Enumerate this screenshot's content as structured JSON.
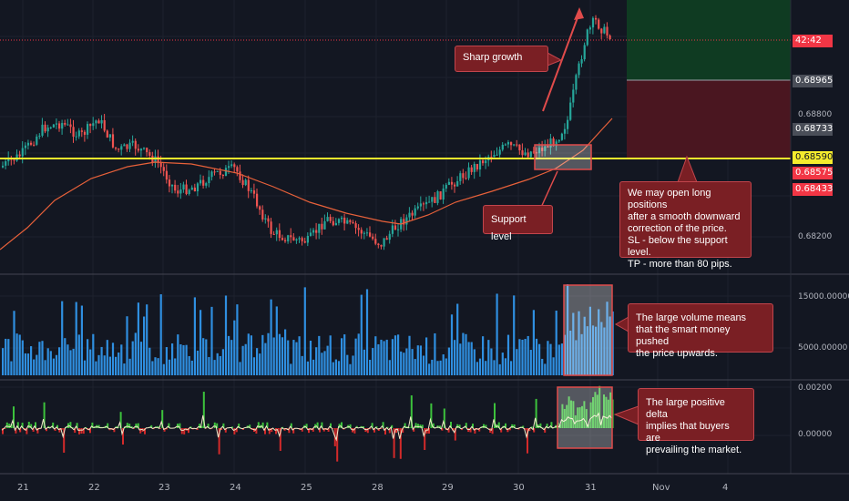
{
  "chart_data": {
    "type": "candlestick",
    "x_labels": [
      "21",
      "22",
      "23",
      "24",
      "25",
      "28",
      "29",
      "30",
      "31",
      "Nov",
      "4"
    ],
    "price_axis": {
      "ticks": [
        "0.68800",
        "0.68200"
      ],
      "ylim": [
        0.6805,
        0.6935
      ]
    },
    "price_tags": [
      {
        "text": "42:42",
        "color": "#f23645"
      },
      {
        "text": "0.68965",
        "color": "#4a4e58"
      },
      {
        "text": "0.68733",
        "color": "#4a4e58"
      },
      {
        "text": "0.68590",
        "color": "#f5ec2d"
      },
      {
        "text": "0.68575",
        "color": "#f23645"
      },
      {
        "text": "0.68433",
        "color": "#f23645"
      }
    ],
    "volume_axis": {
      "ticks": [
        "15000.00000",
        "5000.00000"
      ]
    },
    "delta_axis": {
      "ticks": [
        "0.00200",
        "0.00000"
      ]
    },
    "support_level": 0.6859,
    "annotations": {
      "sharp_growth": "Sharp growth",
      "support": "Support level",
      "setup": "We may open long positions\nafter a smooth downward\ncorrection of the price.\nSL - below the support level.\nTP - more than 80 pips.",
      "volume": "The large volume means\nthat the smart money pushed\nthe price upwards.",
      "delta": "The large positive delta\nimplies that buyers are\nprevailing the market."
    },
    "colors": {
      "up": "#26a69a",
      "down": "#ef5350",
      "volume": "#2f8fe0",
      "ma": "#e8613a",
      "support": "#f5ec2d",
      "profit_zone": "#0f3b22",
      "loss_zone": "#4a1620"
    }
  }
}
